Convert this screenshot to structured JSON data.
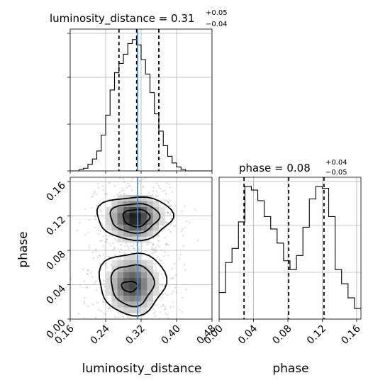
{
  "chart_data": [
    {
      "type": "histogram",
      "panel": "luminosity_distance-marginal",
      "title": {
        "prefix": "luminosity_distance = 0.31",
        "plus": "+0.05",
        "minus": "−0.04"
      },
      "xlim": [
        0.16,
        0.48
      ],
      "bins": [
        0.16,
        0.17,
        0.18,
        0.19,
        0.2,
        0.21,
        0.22,
        0.23,
        0.24,
        0.25,
        0.26,
        0.27,
        0.28,
        0.29,
        0.3,
        0.31,
        0.32,
        0.33,
        0.34,
        0.35,
        0.36,
        0.37,
        0.38,
        0.39,
        0.4,
        0.41,
        0.42,
        0.43,
        0.44,
        0.45,
        0.46,
        0.47,
        0.48
      ],
      "counts": [
        0,
        0,
        1,
        2,
        5,
        9,
        15,
        27,
        42,
        61,
        74,
        81,
        88,
        96,
        99,
        95,
        84,
        73,
        59,
        43,
        30,
        19,
        11,
        6,
        3,
        1,
        0,
        0,
        0,
        0,
        0,
        0
      ],
      "quantiles": [
        0.27,
        0.31,
        0.36
      ],
      "truth": 0.312
    },
    {
      "type": "histogram2d",
      "panel": "luminosity_distance-vs-phase",
      "xlabel": "luminosity_distance",
      "ylabel": "phase",
      "xlim": [
        0.16,
        0.48
      ],
      "ylim": [
        0.0,
        0.165
      ],
      "xticks": [
        "0.16",
        "0.24",
        "0.32",
        "0.40",
        "0.48"
      ],
      "yticks": [
        "0.00",
        "0.04",
        "0.08",
        "0.12",
        "0.16"
      ],
      "modes": [
        {
          "x": 0.305,
          "y": 0.118,
          "sx": 0.032,
          "sy": 0.014,
          "weight": 0.55
        },
        {
          "x": 0.3,
          "y": 0.04,
          "sx": 0.03,
          "sy": 0.018,
          "weight": 0.45
        }
      ],
      "truth": 0.312
    },
    {
      "type": "histogram",
      "panel": "phase-marginal",
      "title": {
        "prefix": "phase = 0.08",
        "plus": "+0.04",
        "minus": "−0.05"
      },
      "xlabel": "phase",
      "xlim": [
        0.0,
        0.165
      ],
      "xticks": [
        "0.00",
        "0.04",
        "0.08",
        "0.12",
        "0.16"
      ],
      "bins": [
        0.0,
        0.0075,
        0.015,
        0.0225,
        0.03,
        0.0375,
        0.045,
        0.0525,
        0.06,
        0.0675,
        0.075,
        0.0825,
        0.09,
        0.0975,
        0.105,
        0.1125,
        0.12,
        0.1275,
        0.135,
        0.1425,
        0.15,
        0.1575,
        0.165
      ],
      "counts": [
        15,
        32,
        40,
        55,
        75,
        73,
        67,
        58,
        51,
        43,
        33,
        28,
        36,
        52,
        68,
        75,
        74,
        58,
        28,
        20,
        12,
        6
      ],
      "quantiles": [
        0.029,
        0.081,
        0.122
      ]
    }
  ]
}
